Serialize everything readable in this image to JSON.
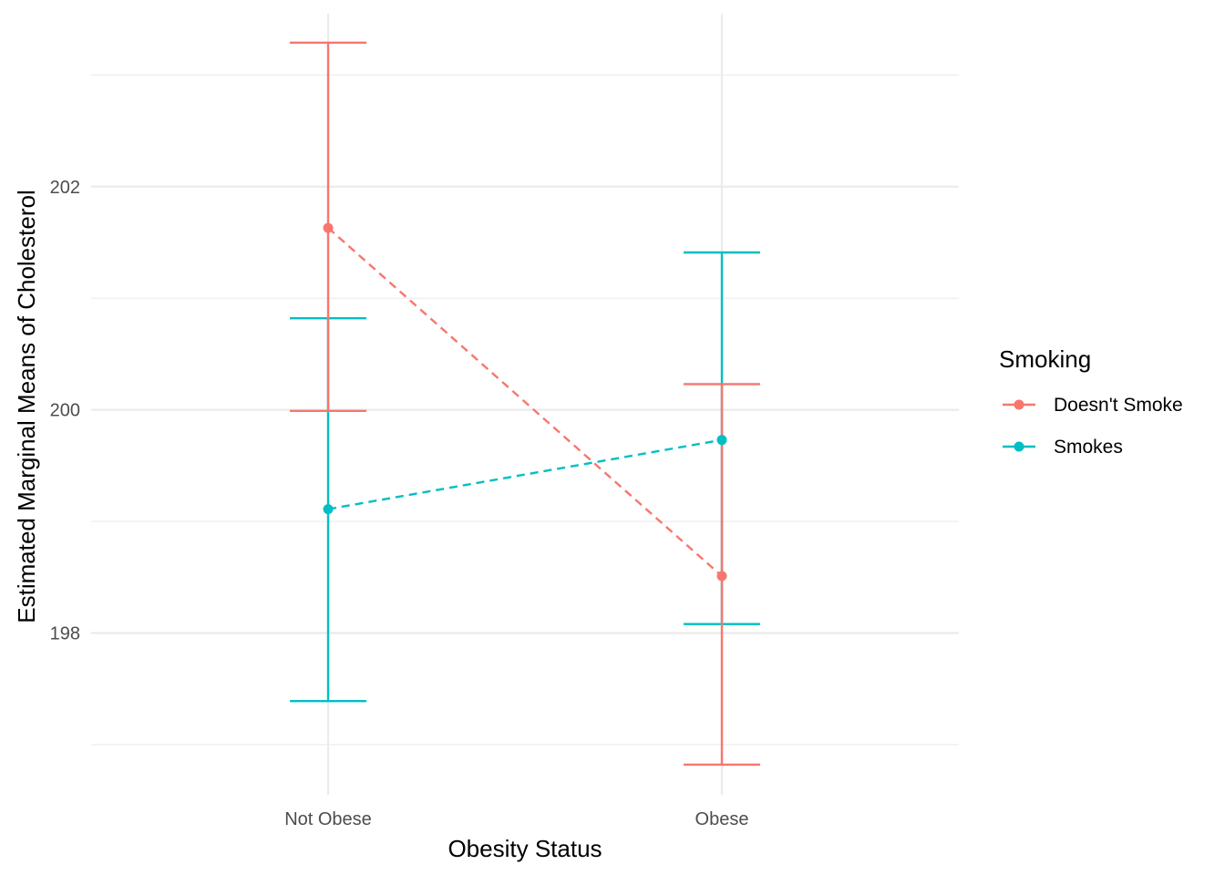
{
  "chart_data": {
    "type": "line",
    "categories": [
      "Not Obese",
      "Obese"
    ],
    "xlabel": "Obesity Status",
    "ylabel": "Estimated Marginal Means of Cholesterol",
    "ylim": [
      196.55,
      203.55
    ],
    "yticks": [
      198,
      200,
      202
    ],
    "grid": true,
    "legend": {
      "title": "Smoking",
      "position": "right"
    },
    "series": [
      {
        "name": "Doesn't Smoke",
        "color": "#F8766D",
        "values": [
          201.63,
          198.51
        ],
        "lower": [
          199.99,
          196.82
        ],
        "upper": [
          203.29,
          200.23
        ]
      },
      {
        "name": "Smokes",
        "color": "#00BFC4",
        "values": [
          199.11,
          199.73
        ],
        "lower": [
          197.39,
          198.08
        ],
        "upper": [
          200.82,
          201.41
        ]
      }
    ]
  }
}
